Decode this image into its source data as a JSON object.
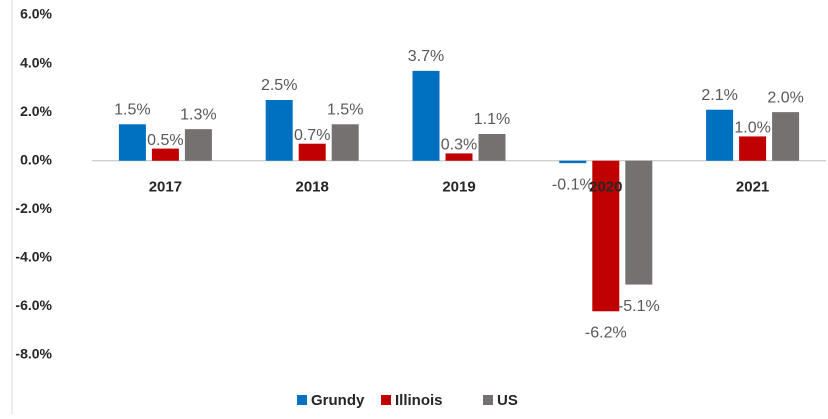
{
  "chart_data": {
    "type": "bar",
    "categories": [
      "2017",
      "2018",
      "2019",
      "2020",
      "2021"
    ],
    "series": [
      {
        "name": "Grundy",
        "color": "#0070c0",
        "values": [
          1.5,
          2.5,
          3.7,
          -0.1,
          2.1
        ],
        "value_labels": [
          "1.5%",
          "2.5%",
          "3.7%",
          "-0.1%",
          "2.1%"
        ]
      },
      {
        "name": "Illinois",
        "color": "#c00000",
        "values": [
          0.5,
          0.7,
          0.3,
          -6.2,
          1.0
        ],
        "value_labels": [
          "0.5%",
          "0.7%",
          "0.3%",
          "-6.2%",
          "1.0%"
        ]
      },
      {
        "name": "US",
        "color": "#767171",
        "values": [
          1.3,
          1.5,
          1.1,
          -5.1,
          2.0
        ],
        "value_labels": [
          "1.3%",
          "1.5%",
          "1.1%",
          "-5.1%",
          "2.0%"
        ]
      }
    ],
    "ylim": [
      -8,
      6
    ],
    "yticks": [
      {
        "value": -8,
        "label": "-8.0%"
      },
      {
        "value": -6,
        "label": "-6.0%"
      },
      {
        "value": -4,
        "label": "-4.0%"
      },
      {
        "value": -2,
        "label": "-2.0%"
      },
      {
        "value": 0,
        "label": "0.0%"
      },
      {
        "value": 2,
        "label": "2.0%"
      },
      {
        "value": 4,
        "label": "4.0%"
      },
      {
        "value": 6,
        "label": "6.0%"
      }
    ],
    "grid": false,
    "legend": "bottom"
  }
}
